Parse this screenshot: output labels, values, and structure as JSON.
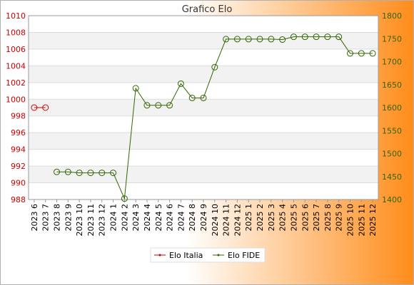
{
  "chart_data": {
    "type": "line",
    "title": "Grafico Elo",
    "categories": [
      "2023 6",
      "2023 7",
      "2023 8",
      "2023 9",
      "2023 10",
      "2023 11",
      "2023 12",
      "2024 1",
      "2024 2",
      "2024 3",
      "2024 4",
      "2024 5",
      "2024 6",
      "2024 7",
      "2024 8",
      "2024 9",
      "2024 10",
      "2024 11",
      "2024 12",
      "2025 1",
      "2025 2",
      "2025 3",
      "2025 4",
      "2025 5",
      "2025 6",
      "2025 7",
      "2025 8",
      "2025 9",
      "2025 10",
      "2025 11",
      "2025 12"
    ],
    "y_left": {
      "ticks": [
        988,
        990,
        992,
        994,
        996,
        998,
        1000,
        1002,
        1004,
        1006,
        1008,
        1010
      ],
      "ylim": [
        988,
        1010
      ],
      "color": "#cc0000"
    },
    "y_right": {
      "ticks": [
        1400,
        1450,
        1500,
        1550,
        1600,
        1650,
        1700,
        1750,
        1800
      ],
      "ylim": [
        1400,
        1800
      ],
      "color": "#336600"
    },
    "grid": true,
    "legend_position": "bottom",
    "series": [
      {
        "name": "Elo Italia",
        "axis": "left",
        "color": "#cc0000",
        "values": [
          999,
          999,
          null,
          null,
          null,
          null,
          null,
          null,
          null,
          null,
          null,
          null,
          null,
          null,
          null,
          null,
          null,
          null,
          null,
          null,
          null,
          null,
          null,
          null,
          null,
          null,
          null,
          null,
          null,
          null,
          null
        ]
      },
      {
        "name": "Elo FIDE",
        "axis": "right",
        "color": "#336600",
        "values": [
          null,
          null,
          1460,
          1460,
          1458,
          1458,
          1458,
          1458,
          1402,
          1642,
          1605,
          1605,
          1605,
          1652,
          1621,
          1621,
          1688,
          1749,
          1749,
          1749,
          1749,
          1749,
          1748,
          1754,
          1754,
          1754,
          1754,
          1754,
          1718,
          1718,
          1718
        ]
      }
    ]
  }
}
